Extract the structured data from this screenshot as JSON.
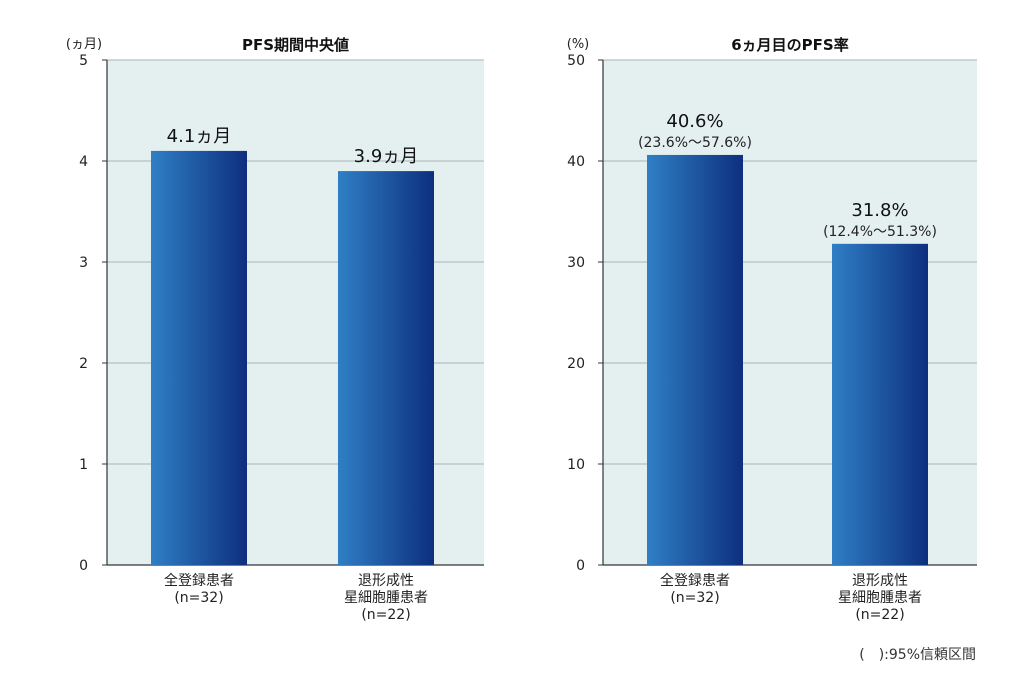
{
  "footnote": "(　):95%信頼区間",
  "colors": {
    "plot_bg": "#e4f0f0",
    "grid": "#a9b3b6",
    "axis": "#333333",
    "bar_light": "#2f7fc5",
    "bar_dark": "#0d2f7e"
  },
  "chart_data": [
    {
      "type": "bar",
      "title": "PFS期間中央値",
      "unit_label": "(ヵ月)",
      "ylim": [
        0,
        5
      ],
      "yticks": [
        0,
        1,
        2,
        3,
        4,
        5
      ],
      "grid": true,
      "categories": [
        [
          "全登録患者",
          "(n=32)"
        ],
        [
          "退形成性",
          "星細胞腫患者",
          "(n=22)"
        ]
      ],
      "values": [
        4.1,
        3.9
      ],
      "value_labels": [
        "4.1ヵ月",
        "3.9ヵ月"
      ],
      "ci_labels": [
        "",
        ""
      ]
    },
    {
      "type": "bar",
      "title": "6ヵ月目のPFS率",
      "unit_label": "(%)",
      "ylim": [
        0,
        50
      ],
      "yticks": [
        0,
        10,
        20,
        30,
        40,
        50
      ],
      "grid": true,
      "categories": [
        [
          "全登録患者",
          "(n=32)"
        ],
        [
          "退形成性",
          "星細胞腫患者",
          "(n=22)"
        ]
      ],
      "values": [
        40.6,
        31.8
      ],
      "value_labels": [
        "40.6%",
        "31.8%"
      ],
      "ci_labels": [
        "(23.6%〜57.6%)",
        "(12.4%〜51.3%)"
      ]
    }
  ]
}
